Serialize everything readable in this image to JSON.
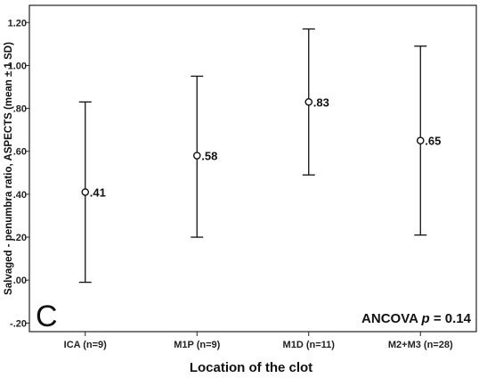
{
  "chart_data": {
    "type": "errorbar",
    "panel_label": "C",
    "xlabel": "Location of the clot",
    "ylabel": "Salvaged - penumbra ratio, ASPECTS (mean ± 1 SD)",
    "annotation": {
      "prefix": "ANCOVA ",
      "p": "p",
      "suffix": " = 0.14"
    },
    "ylim": [
      -0.24,
      1.28
    ],
    "yticks": [
      -0.2,
      0.0,
      0.2,
      0.4,
      0.6,
      0.8,
      1.0,
      1.2
    ],
    "ytick_labels": [
      "-.20",
      ".00",
      ".20",
      ".40",
      ".60",
      ".80",
      "1.00",
      "1.20"
    ],
    "categories": [
      "ICA (n=9)",
      "M1P (n=9)",
      "M1D (n=11)",
      "M2+M3 (n=28)"
    ],
    "means": [
      0.41,
      0.58,
      0.83,
      0.65
    ],
    "mean_labels": [
      ".41",
      ".58",
      ".83",
      ".65"
    ],
    "lower": [
      -0.01,
      0.2,
      0.49,
      0.21
    ],
    "upper": [
      0.83,
      0.95,
      1.17,
      1.09
    ],
    "grid": false,
    "colors": {
      "frame": "#222222",
      "bars": "#111111",
      "background": "#ffffff"
    }
  }
}
